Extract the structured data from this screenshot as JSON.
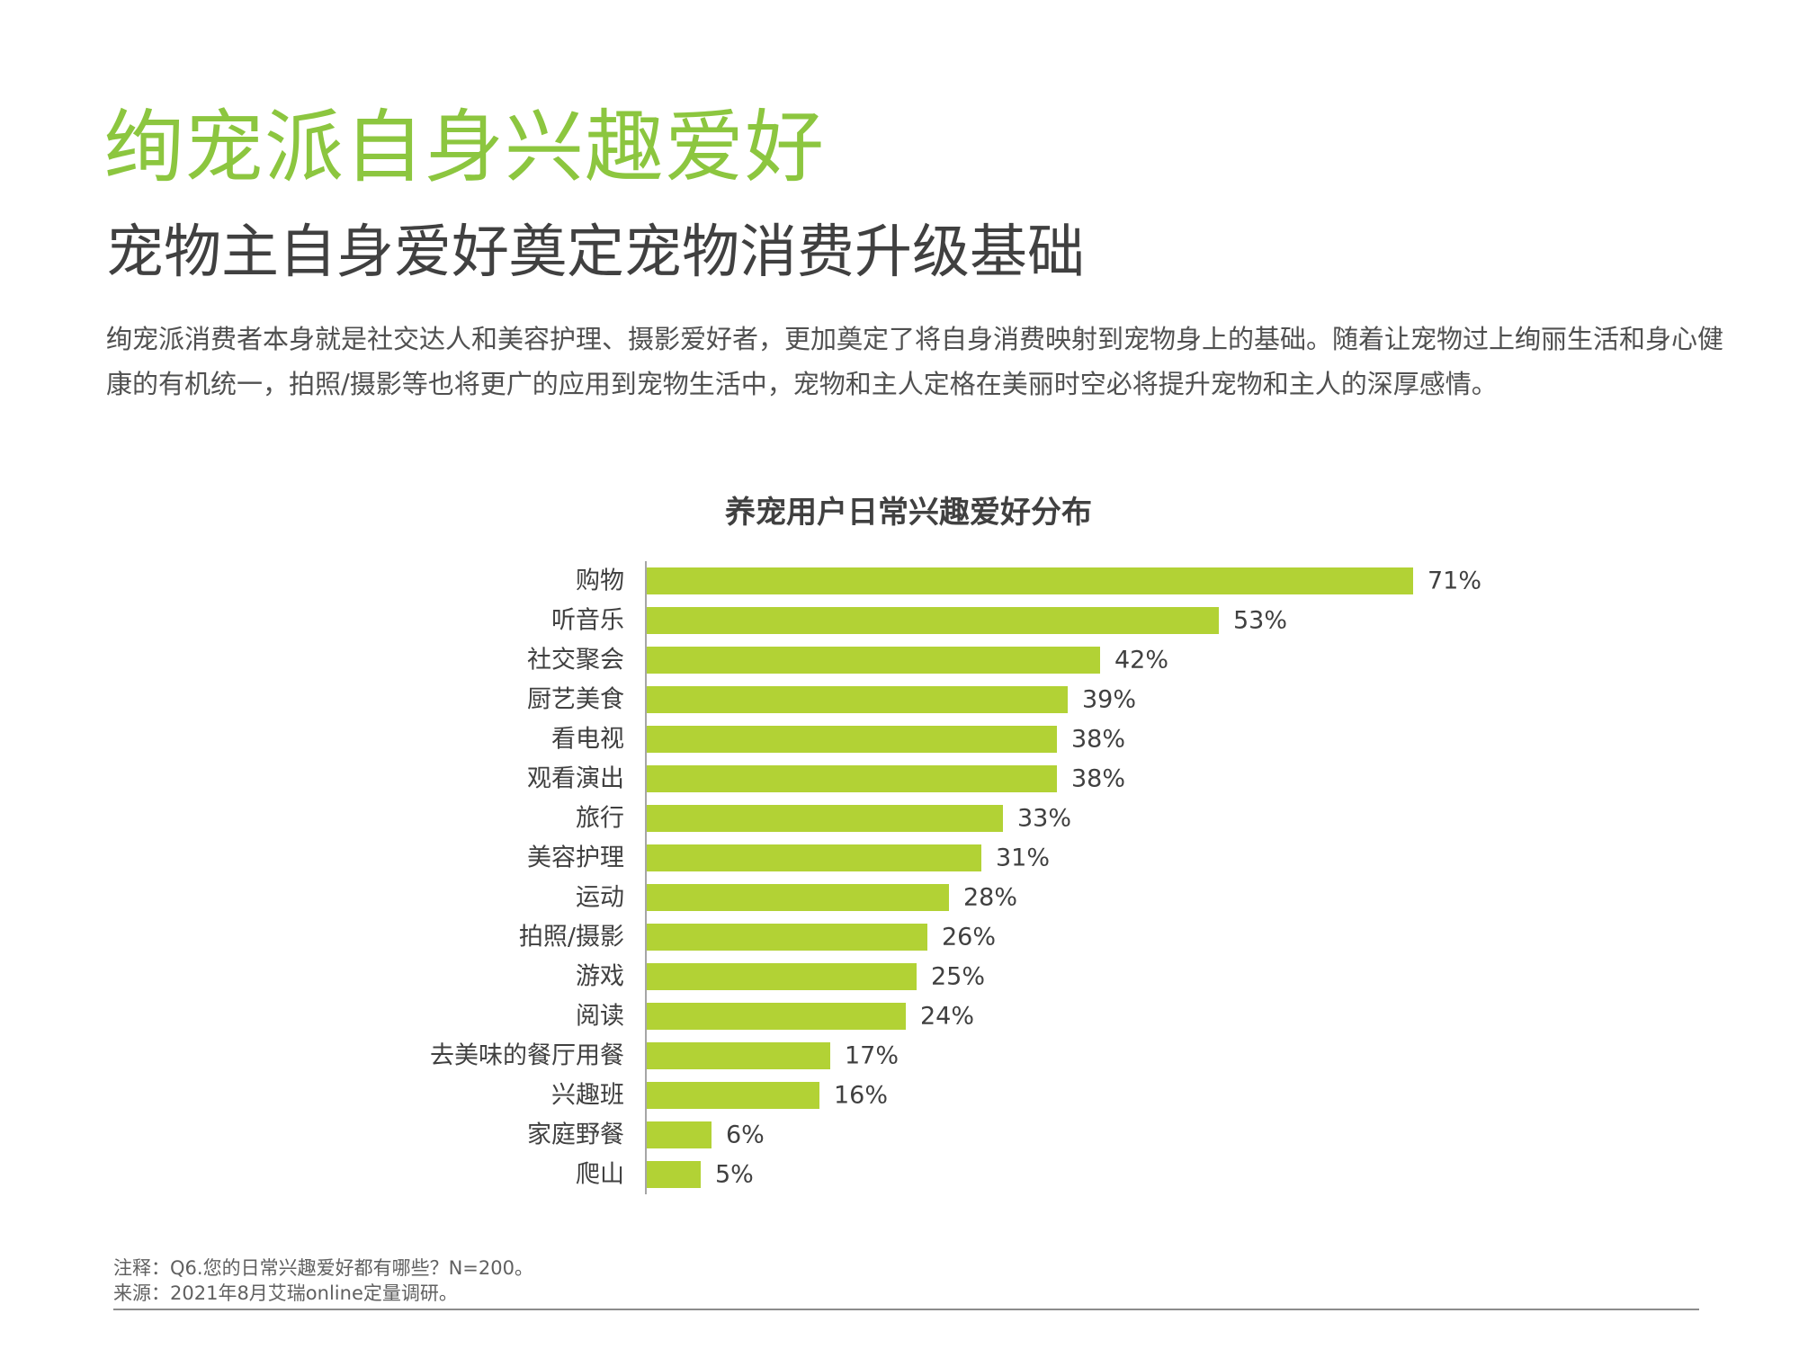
{
  "title": "绚宠派自身兴趣爱好",
  "subtitle": "宠物主自身爱好奠定宠物消费升级基础",
  "description": "绚宠派消费者本身就是社交达人和美容护理、摄影爱好者，更加奠定了将自身消费映射到宠物身上的基础。随着让宠物过上绚丽生活和身心健康的有机统一，拍照/摄影等也将更广的应用到宠物生活中，宠物和主人定格在美丽时空必将提升宠物和主人的深厚感情。",
  "note": "注释：Q6.您的日常兴趣爱好都有哪些？N=200。",
  "source": "来源：2021年8月艾瑞online定量调研。",
  "colors": {
    "title": "#8cc63f",
    "bar": "#b2d235",
    "axis": "#a6a6a6",
    "text": "#404040"
  },
  "chart_data": {
    "type": "bar",
    "orientation": "horizontal",
    "title": "养宠用户日常兴趣爱好分布",
    "categories": [
      "购物",
      "听音乐",
      "社交聚会",
      "厨艺美食",
      "看电视",
      "观看演出",
      "旅行",
      "美容护理",
      "运动",
      "拍照/摄影",
      "游戏",
      "阅读",
      "去美味的餐厅用餐",
      "兴趣班",
      "家庭野餐",
      "爬山"
    ],
    "values": [
      71,
      53,
      42,
      39,
      38,
      38,
      33,
      31,
      28,
      26,
      25,
      24,
      17,
      16,
      6,
      5
    ],
    "labels": [
      "71%",
      "53%",
      "42%",
      "39%",
      "38%",
      "38%",
      "33%",
      "31%",
      "28%",
      "26%",
      "25%",
      "24%",
      "17%",
      "16%",
      "6%",
      "5%"
    ],
    "unit": "%",
    "xlim": [
      0,
      71
    ],
    "grid": false,
    "legend": "none"
  }
}
